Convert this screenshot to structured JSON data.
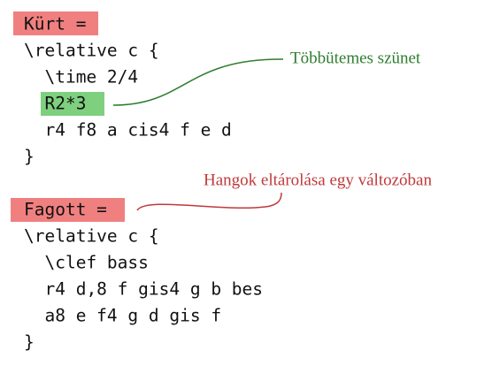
{
  "code": {
    "lines": [
      "Kürt =",
      "\\relative c {",
      "  \\time 2/4",
      "  R2*3",
      "  r4 f8 a cis4 f e d",
      "}",
      "",
      "Fagott =",
      "\\relative c {",
      "  \\clef bass",
      "  r4 d,8 f gis4 g b bes",
      "  a8 e f4 g d gis f",
      "}"
    ]
  },
  "annotations": [
    {
      "text": "Többütemes szünet"
    },
    {
      "text": "Hangok eltárolása egy változóban"
    }
  ]
}
